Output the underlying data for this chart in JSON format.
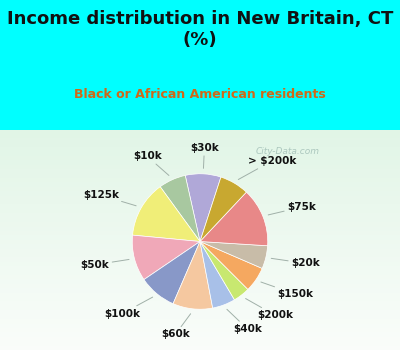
{
  "title": "Income distribution in New Britain, CT\n(%)",
  "subtitle": "Black or African American residents",
  "labels": [
    "$30k",
    "$10k",
    "$125k",
    "$50k",
    "$100k",
    "$60k",
    "$40k",
    "$200k",
    "$150k",
    "$20k",
    "$75k",
    "> $200k"
  ],
  "sizes": [
    8.5,
    6.5,
    13.5,
    11.0,
    9.0,
    9.5,
    5.5,
    4.0,
    6.0,
    5.5,
    14.0,
    7.0
  ],
  "colors": [
    "#b0a8d8",
    "#a8c8a0",
    "#f0ee78",
    "#f0a8b8",
    "#8898c8",
    "#f5c8a0",
    "#a8c0e8",
    "#c8e870",
    "#f5a860",
    "#c8bca8",
    "#e88888",
    "#c8a830"
  ],
  "bg_top": "#00ffff",
  "bg_chart_top": "#e8f8f0",
  "bg_chart_bottom": "#c8ecd8",
  "title_color": "#111111",
  "subtitle_color": "#d06818",
  "watermark": "City-Data.com",
  "label_fontsize": 7.5,
  "title_fontsize": 13,
  "subtitle_fontsize": 9,
  "startangle": 72
}
